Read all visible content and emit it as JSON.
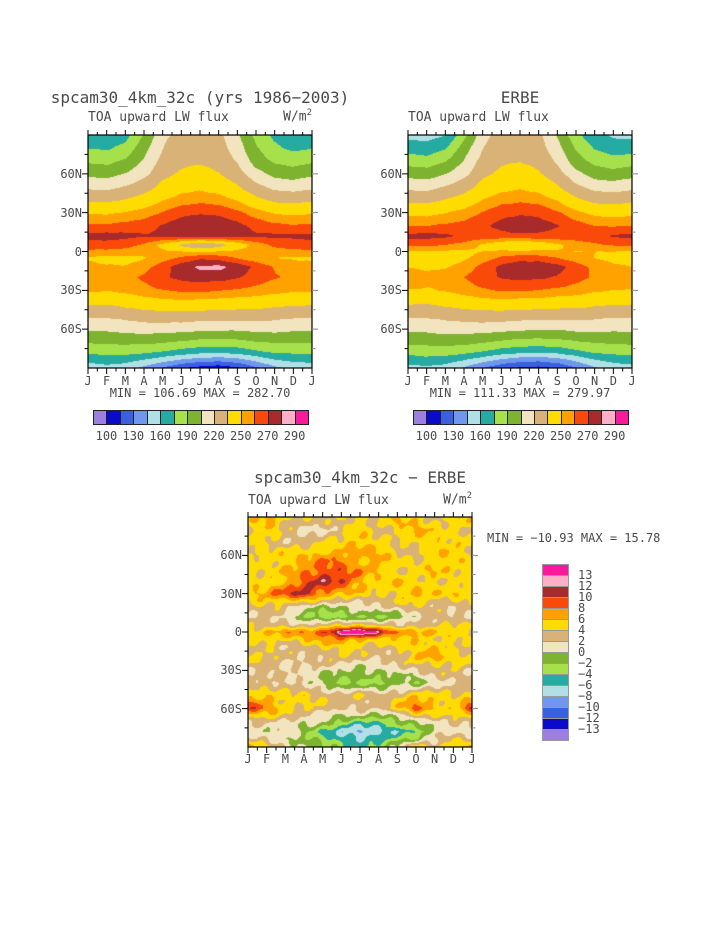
{
  "figure": {
    "panels": {
      "spcam": {
        "title": "spcam30_4km_32c (yrs 1986−2003)",
        "flux_label": "TOA upward LW flux",
        "units": "W/m",
        "units_exp": "2",
        "stats": "MIN = 106.69 MAX = 282.70"
      },
      "erbe": {
        "title": "ERBE",
        "flux_label": "TOA upward LW flux",
        "stats": "MIN = 111.33 MAX = 279.97"
      },
      "diff": {
        "title": "spcam30_4km_32c − ERBE",
        "flux_label": "TOA upward LW flux",
        "units": "W/m",
        "units_exp": "2",
        "stats": "MIN = −10.93 MAX =  15.78"
      }
    }
  },
  "palette": [
    "#9C7FDE",
    "#0A0AC8",
    "#3960E0",
    "#6F97EE",
    "#B0E0E6",
    "#26ABA2",
    "#A6E14C",
    "#7DB32E",
    "#F2E4BE",
    "#D9B277",
    "#FFDC00",
    "#FFA200",
    "#FA4A0A",
    "#A82A2A",
    "#FFAEC8",
    "#F9199A"
  ],
  "chart_data": [
    {
      "id": "spcam",
      "type": "heatmap",
      "title": "spcam30_4km_32c (yrs 1986-2003) TOA upward LW flux",
      "units": "W/m2",
      "min": 106.69,
      "max": 282.7,
      "x_labels": [
        "J",
        "F",
        "M",
        "A",
        "M",
        "J",
        "J",
        "A",
        "S",
        "O",
        "N",
        "D",
        "J"
      ],
      "y_tick_labels": [
        "60N",
        "30N",
        "0",
        "30S",
        "60S"
      ],
      "y_tick_lats": [
        60,
        30,
        0,
        -30,
        -60
      ],
      "colorbar_tick_labels": [
        "100",
        "130",
        "160",
        "190",
        "220",
        "250",
        "270",
        "290"
      ],
      "levels": [
        100,
        115,
        130,
        145,
        160,
        175,
        190,
        205,
        220,
        235,
        250,
        260,
        270,
        280,
        290
      ],
      "lats": [
        90,
        80,
        70,
        60,
        50,
        40,
        30,
        20,
        12,
        5,
        0,
        -5,
        -12,
        -20,
        -30,
        -40,
        -50,
        -60,
        -70,
        -78,
        -84,
        -90
      ],
      "noise": 0.25,
      "values": [
        [
          168,
          166,
          170,
          192,
          216,
          226,
          229,
          224,
          208,
          186,
          172,
          166,
          168
        ],
        [
          175,
          173,
          180,
          200,
          220,
          229,
          231,
          227,
          213,
          192,
          178,
          172,
          175
        ],
        [
          188,
          186,
          193,
          207,
          225,
          232,
          234,
          230,
          219,
          199,
          188,
          184,
          188
        ],
        [
          202,
          200,
          206,
          216,
          231,
          237,
          239,
          236,
          227,
          211,
          201,
          198,
          202
        ],
        [
          217,
          216,
          221,
          229,
          239,
          245,
          247,
          244,
          237,
          225,
          216,
          214,
          217
        ],
        [
          233,
          232,
          236,
          241,
          249,
          255,
          257,
          255,
          249,
          239,
          232,
          231,
          233
        ],
        [
          249,
          248,
          251,
          255,
          261,
          267,
          269,
          268,
          263,
          255,
          249,
          247,
          249
        ],
        [
          262,
          262,
          264,
          266,
          271,
          276,
          278,
          277,
          273,
          267,
          263,
          261,
          262
        ],
        [
          273,
          274,
          273,
          271,
          272,
          276,
          278,
          277,
          274,
          272,
          272,
          272,
          273
        ],
        [
          266,
          266,
          264,
          258,
          246,
          232,
          220,
          228,
          242,
          254,
          262,
          265,
          266
        ],
        [
          258,
          257,
          256,
          254,
          252,
          250,
          248,
          250,
          253,
          255,
          256,
          257,
          258
        ],
        [
          248,
          247,
          246,
          249,
          255,
          262,
          268,
          266,
          259,
          253,
          250,
          249,
          248
        ],
        [
          253,
          251,
          251,
          256,
          266,
          276,
          282,
          283,
          277,
          268,
          259,
          254,
          253
        ],
        [
          258,
          256,
          257,
          262,
          268,
          273,
          275,
          274,
          271,
          266,
          261,
          258,
          258
        ],
        [
          252,
          251,
          253,
          257,
          260,
          262,
          262,
          261,
          259,
          257,
          254,
          252,
          252
        ],
        [
          238,
          237,
          240,
          243,
          245,
          246,
          245,
          244,
          243,
          242,
          240,
          238,
          238
        ],
        [
          222,
          222,
          225,
          228,
          229,
          229,
          228,
          227,
          227,
          227,
          225,
          223,
          222
        ],
        [
          208,
          208,
          210,
          212,
          212,
          211,
          209,
          208,
          208,
          210,
          210,
          208,
          208
        ],
        [
          192,
          193,
          194,
          194,
          192,
          189,
          186,
          185,
          186,
          190,
          192,
          192,
          192
        ],
        [
          178,
          180,
          180,
          178,
          174,
          169,
          165,
          164,
          166,
          172,
          177,
          178,
          178
        ],
        [
          165,
          168,
          166,
          160,
          152,
          144,
          138,
          136,
          140,
          150,
          160,
          164,
          165
        ],
        [
          152,
          156,
          152,
          142,
          130,
          118,
          111,
          107,
          114,
          128,
          142,
          150,
          152
        ]
      ]
    },
    {
      "id": "erbe",
      "type": "heatmap",
      "title": "ERBE TOA upward LW flux",
      "units": "W/m2",
      "min": 111.33,
      "max": 279.97,
      "x_labels": [
        "J",
        "F",
        "M",
        "A",
        "M",
        "J",
        "J",
        "A",
        "S",
        "O",
        "N",
        "D",
        "J"
      ],
      "y_tick_labels": [
        "60N",
        "30N",
        "0",
        "30S",
        "60S"
      ],
      "y_tick_lats": [
        60,
        30,
        0,
        -30,
        -60
      ],
      "colorbar_tick_labels": [
        "100",
        "130",
        "160",
        "190",
        "220",
        "250",
        "270",
        "290"
      ],
      "levels": [
        100,
        115,
        130,
        145,
        160,
        175,
        190,
        205,
        220,
        235,
        250,
        260,
        270,
        280,
        290
      ],
      "lats": [
        90,
        80,
        70,
        60,
        50,
        40,
        30,
        20,
        12,
        5,
        0,
        -5,
        -12,
        -20,
        -30,
        -40,
        -50,
        -60,
        -70,
        -78,
        -84,
        -90
      ],
      "noise": 0.25,
      "values": [
        [
          156,
          155,
          160,
          186,
          214,
          228,
          230,
          224,
          204,
          180,
          165,
          158,
          156
        ],
        [
          168,
          166,
          174,
          198,
          220,
          230,
          232,
          227,
          211,
          189,
          174,
          168,
          168
        ],
        [
          184,
          182,
          190,
          206,
          226,
          233,
          235,
          231,
          218,
          197,
          186,
          181,
          184
        ],
        [
          200,
          198,
          205,
          216,
          232,
          238,
          240,
          237,
          227,
          210,
          199,
          196,
          200
        ],
        [
          216,
          215,
          221,
          229,
          240,
          246,
          248,
          245,
          237,
          224,
          215,
          213,
          216
        ],
        [
          232,
          231,
          236,
          241,
          250,
          256,
          258,
          256,
          249,
          238,
          231,
          230,
          232
        ],
        [
          247,
          246,
          250,
          254,
          261,
          267,
          269,
          268,
          262,
          253,
          247,
          245,
          247
        ],
        [
          260,
          260,
          262,
          264,
          268,
          273,
          275,
          274,
          271,
          265,
          260,
          259,
          260
        ],
        [
          273,
          274,
          272,
          268,
          266,
          267,
          268,
          268,
          267,
          266,
          268,
          271,
          273
        ],
        [
          262,
          262,
          260,
          256,
          248,
          240,
          236,
          240,
          248,
          254,
          258,
          261,
          262
        ],
        [
          250,
          249,
          248,
          248,
          250,
          252,
          252,
          252,
          251,
          250,
          250,
          250,
          250
        ],
        [
          246,
          245,
          245,
          248,
          254,
          262,
          266,
          265,
          260,
          254,
          250,
          247,
          246
        ],
        [
          250,
          248,
          249,
          254,
          264,
          273,
          277,
          278,
          274,
          266,
          257,
          252,
          250
        ],
        [
          255,
          253,
          255,
          260,
          266,
          271,
          273,
          272,
          269,
          264,
          259,
          256,
          255
        ],
        [
          250,
          249,
          251,
          255,
          259,
          261,
          261,
          260,
          258,
          256,
          252,
          250,
          250
        ],
        [
          237,
          236,
          239,
          242,
          244,
          245,
          244,
          243,
          242,
          241,
          239,
          237,
          237
        ],
        [
          222,
          222,
          225,
          227,
          228,
          228,
          227,
          226,
          226,
          226,
          224,
          222,
          222
        ],
        [
          209,
          209,
          211,
          212,
          212,
          210,
          208,
          207,
          207,
          209,
          209,
          208,
          209
        ],
        [
          194,
          195,
          196,
          195,
          192,
          188,
          185,
          184,
          185,
          189,
          192,
          193,
          194
        ],
        [
          180,
          182,
          182,
          179,
          174,
          168,
          164,
          163,
          165,
          171,
          177,
          179,
          180
        ],
        [
          168,
          170,
          168,
          161,
          152,
          143,
          137,
          135,
          139,
          149,
          160,
          165,
          168
        ],
        [
          155,
          158,
          154,
          144,
          131,
          120,
          114,
          112,
          117,
          130,
          144,
          152,
          155
        ]
      ]
    },
    {
      "id": "diff",
      "type": "heatmap",
      "title": "spcam30_4km_32c - ERBE TOA upward LW flux",
      "units": "W/m2",
      "min": -10.93,
      "max": 15.78,
      "x_labels": [
        "J",
        "F",
        "M",
        "A",
        "M",
        "J",
        "J",
        "A",
        "S",
        "O",
        "N",
        "D",
        "J"
      ],
      "y_tick_labels": [
        "60N",
        "30N",
        "0",
        "30S",
        "60S"
      ],
      "y_tick_lats": [
        60,
        30,
        0,
        -30,
        -60
      ],
      "colorbar_tick_labels": [
        "13",
        "12",
        "10",
        "8",
        "6",
        "4",
        "2",
        "0",
        "−2",
        "−4",
        "−6",
        "−8",
        "−10",
        "−12",
        "−13"
      ],
      "levels": [
        -13,
        -12,
        -10,
        -8,
        -6,
        -4,
        -2,
        0,
        2,
        4,
        6,
        8,
        10,
        12,
        13
      ],
      "lats": [
        90,
        80,
        70,
        60,
        50,
        40,
        30,
        20,
        12,
        5,
        0,
        -5,
        -12,
        -20,
        -30,
        -40,
        -50,
        -60,
        -70,
        -78,
        -84,
        -90
      ],
      "noise": 1.1,
      "values": [
        [
          5,
          7,
          5,
          4,
          3,
          4,
          5,
          4,
          6,
          5,
          4,
          5,
          5
        ],
        [
          4,
          6,
          3,
          1,
          2,
          3,
          5,
          3,
          5,
          7,
          5,
          4,
          4
        ],
        [
          5,
          4,
          3,
          3,
          4,
          5,
          7,
          5,
          3,
          4,
          6,
          5,
          5
        ],
        [
          4,
          5,
          5,
          6,
          7,
          7,
          6,
          7,
          5,
          3,
          5,
          6,
          4
        ],
        [
          5,
          4,
          6,
          7,
          9,
          9,
          7,
          6,
          4,
          5,
          6,
          5,
          5
        ],
        [
          4,
          5,
          6,
          9,
          11,
          10,
          7,
          5,
          6,
          4,
          5,
          4,
          4
        ],
        [
          6,
          7,
          9,
          11,
          8,
          6,
          5,
          4,
          5,
          7,
          5,
          6,
          6
        ],
        [
          3,
          4,
          3,
          1,
          -1,
          0,
          1,
          2,
          3,
          4,
          3,
          2,
          3
        ],
        [
          2,
          3,
          1,
          -2,
          -3,
          -3,
          -2,
          -3,
          -1,
          1,
          3,
          2,
          2
        ],
        [
          4,
          3,
          4,
          2,
          3,
          5,
          6,
          4,
          2,
          3,
          4,
          5,
          4
        ],
        [
          5,
          6,
          7,
          8,
          10,
          14,
          16,
          12,
          9,
          7,
          6,
          5,
          5
        ],
        [
          4,
          5,
          5,
          6,
          7,
          8,
          7,
          6,
          5,
          6,
          4,
          5,
          4
        ],
        [
          3,
          4,
          2,
          3,
          4,
          5,
          4,
          3,
          4,
          5,
          6,
          4,
          3
        ],
        [
          5,
          4,
          3,
          2,
          3,
          4,
          3,
          2,
          3,
          6,
          7,
          5,
          5
        ],
        [
          2,
          3,
          1,
          2,
          1,
          0,
          -1,
          0,
          1,
          2,
          3,
          4,
          2
        ],
        [
          3,
          2,
          3,
          1,
          -1,
          -3,
          -2,
          -3,
          -1,
          -2,
          1,
          2,
          3
        ],
        [
          5,
          6,
          4,
          5,
          4,
          3,
          4,
          3,
          4,
          6,
          5,
          4,
          5
        ],
        [
          10,
          8,
          5,
          4,
          3,
          2,
          3,
          2,
          5,
          9,
          6,
          5,
          10
        ],
        [
          2,
          3,
          2,
          1,
          0,
          -2,
          -3,
          -4,
          -2,
          0,
          2,
          3,
          2
        ],
        [
          1,
          0,
          1,
          -1,
          -4,
          -7,
          -9,
          -7,
          -5,
          -4,
          0,
          1,
          1
        ],
        [
          3,
          2,
          0,
          -1,
          -3,
          -5,
          -6,
          -5,
          -3,
          -2,
          2,
          4,
          3
        ],
        [
          6,
          5,
          2,
          0,
          -2,
          -3,
          -4,
          -3,
          0,
          6,
          4,
          5,
          6
        ]
      ]
    }
  ]
}
